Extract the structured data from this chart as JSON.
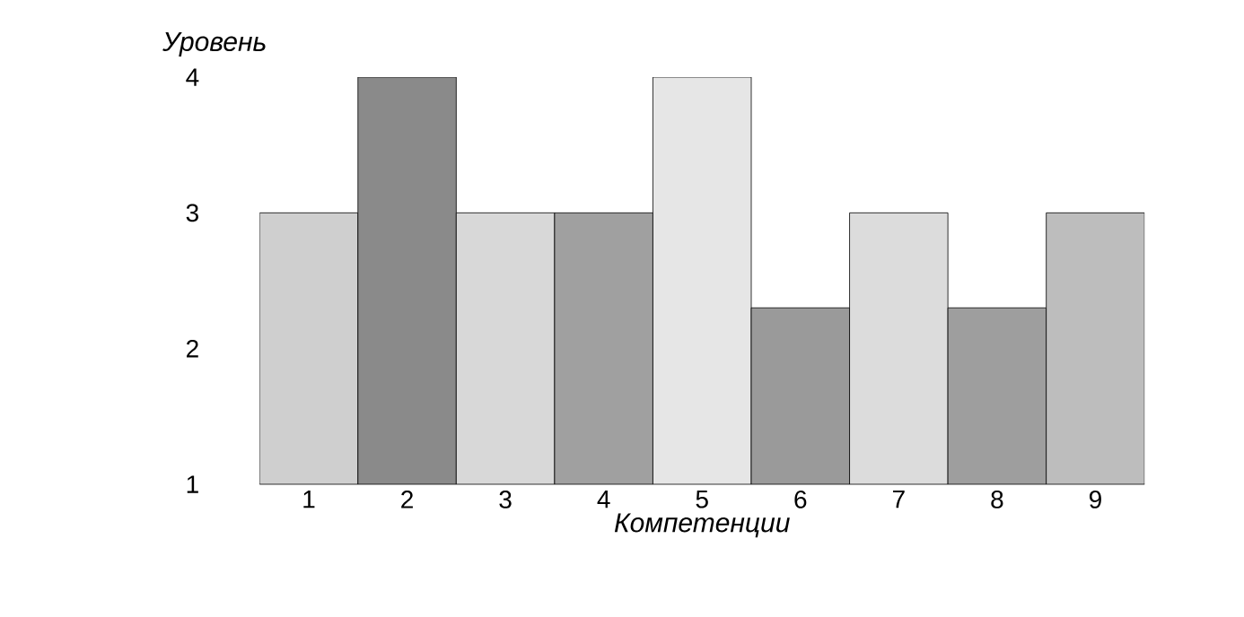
{
  "chart_data": {
    "type": "bar",
    "xlabel": "Компетенции",
    "ylabel": "Уровень",
    "categories": [
      "1",
      "2",
      "3",
      "4",
      "5",
      "6",
      "7",
      "8",
      "9"
    ],
    "values": [
      3,
      4,
      3,
      3,
      4,
      2.3,
      3,
      2.3,
      3
    ],
    "colors": [
      "#cfcfcf",
      "#8a8a8a",
      "#d8d8d8",
      "#a0a0a0",
      "#e6e6e6",
      "#9a9a9a",
      "#dcdcdc",
      "#9e9e9e",
      "#bdbdbd"
    ],
    "ylim": [
      1,
      4
    ],
    "yticks": [
      1,
      2,
      3,
      4
    ]
  }
}
